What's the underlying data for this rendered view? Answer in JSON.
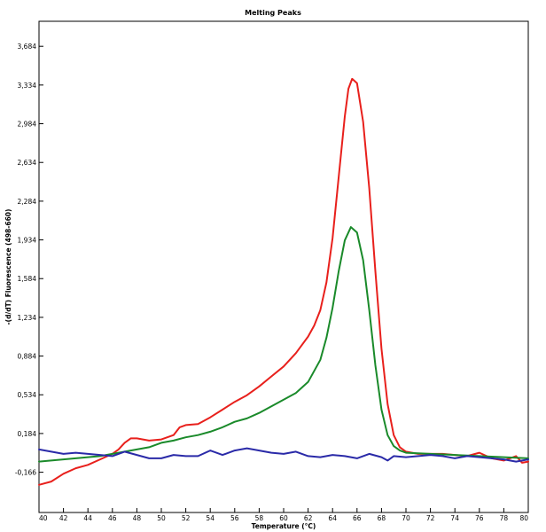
{
  "chart_data": {
    "type": "line",
    "title": "Melting Peaks",
    "xlabel": "Temperature (°C)",
    "ylabel": "-(d/dT) Fluorescence (498-660)",
    "xlim": [
      40,
      80
    ],
    "ylim": [
      -0.53,
      3.91
    ],
    "x_ticks": [
      40,
      42,
      44,
      46,
      48,
      50,
      52,
      54,
      56,
      58,
      60,
      62,
      64,
      66,
      68,
      70,
      72,
      74,
      76,
      78,
      80
    ],
    "x_tick_labels": [
      "40",
      "42",
      "44",
      "46",
      "48",
      "50",
      "52",
      "54",
      "56",
      "58",
      "60",
      "62",
      "64",
      "66",
      "68",
      "70",
      "72",
      "74",
      "76",
      "78",
      "80"
    ],
    "y_ticks": [
      -0.166,
      0.184,
      0.534,
      0.884,
      1.234,
      1.584,
      1.934,
      2.284,
      2.634,
      2.984,
      3.334,
      3.684
    ],
    "y_tick_labels": [
      "-0,166",
      "0,184",
      "0,534",
      "0,884",
      "1,234",
      "1,584",
      "1,934",
      "2,284",
      "2,634",
      "2,984",
      "3,334",
      "3,684"
    ],
    "grid": false,
    "legend": "none",
    "series": [
      {
        "color": "#e8201c",
        "points": [
          [
            40,
            -0.28
          ],
          [
            41,
            -0.25
          ],
          [
            42,
            -0.18
          ],
          [
            43,
            -0.13
          ],
          [
            44,
            -0.1
          ],
          [
            45,
            -0.05
          ],
          [
            46,
            0.0
          ],
          [
            46.5,
            0.04
          ],
          [
            47,
            0.1
          ],
          [
            47.5,
            0.14
          ],
          [
            48,
            0.14
          ],
          [
            48.5,
            0.13
          ],
          [
            49,
            0.12
          ],
          [
            50,
            0.13
          ],
          [
            51,
            0.17
          ],
          [
            51.5,
            0.24
          ],
          [
            52,
            0.26
          ],
          [
            53,
            0.27
          ],
          [
            54,
            0.33
          ],
          [
            55,
            0.4
          ],
          [
            56,
            0.47
          ],
          [
            57,
            0.53
          ],
          [
            58,
            0.61
          ],
          [
            59,
            0.7
          ],
          [
            60,
            0.79
          ],
          [
            61,
            0.91
          ],
          [
            62,
            1.06
          ],
          [
            62.5,
            1.16
          ],
          [
            63,
            1.3
          ],
          [
            63.5,
            1.55
          ],
          [
            64,
            1.95
          ],
          [
            64.5,
            2.5
          ],
          [
            65,
            3.05
          ],
          [
            65.3,
            3.3
          ],
          [
            65.6,
            3.39
          ],
          [
            66,
            3.35
          ],
          [
            66.5,
            3.0
          ],
          [
            67,
            2.4
          ],
          [
            67.5,
            1.65
          ],
          [
            68,
            0.95
          ],
          [
            68.5,
            0.45
          ],
          [
            69,
            0.17
          ],
          [
            69.5,
            0.06
          ],
          [
            70,
            0.02
          ],
          [
            71,
            0.0
          ],
          [
            72,
            0.0
          ],
          [
            73,
            0.0
          ],
          [
            74,
            -0.01
          ],
          [
            75,
            -0.02
          ],
          [
            76,
            0.01
          ],
          [
            77,
            -0.04
          ],
          [
            78,
            -0.06
          ],
          [
            79,
            -0.02
          ],
          [
            79.5,
            -0.08
          ],
          [
            80,
            -0.07
          ]
        ]
      },
      {
        "color": "#1a8a2a",
        "points": [
          [
            40,
            -0.07
          ],
          [
            41,
            -0.06
          ],
          [
            42,
            -0.05
          ],
          [
            43,
            -0.04
          ],
          [
            44,
            -0.03
          ],
          [
            45,
            -0.02
          ],
          [
            46,
            0.0
          ],
          [
            47,
            0.02
          ],
          [
            48,
            0.04
          ],
          [
            49,
            0.06
          ],
          [
            50,
            0.1
          ],
          [
            51,
            0.12
          ],
          [
            52,
            0.15
          ],
          [
            53,
            0.17
          ],
          [
            54,
            0.2
          ],
          [
            55,
            0.24
          ],
          [
            56,
            0.29
          ],
          [
            57,
            0.32
          ],
          [
            58,
            0.37
          ],
          [
            59,
            0.43
          ],
          [
            60,
            0.49
          ],
          [
            61,
            0.55
          ],
          [
            62,
            0.65
          ],
          [
            63,
            0.85
          ],
          [
            63.5,
            1.05
          ],
          [
            64,
            1.32
          ],
          [
            64.5,
            1.65
          ],
          [
            65,
            1.93
          ],
          [
            65.5,
            2.05
          ],
          [
            66,
            2.0
          ],
          [
            66.5,
            1.75
          ],
          [
            67,
            1.3
          ],
          [
            67.5,
            0.8
          ],
          [
            68,
            0.4
          ],
          [
            68.5,
            0.17
          ],
          [
            69,
            0.07
          ],
          [
            69.5,
            0.03
          ],
          [
            70,
            0.01
          ],
          [
            72,
            0.0
          ],
          [
            74,
            -0.01
          ],
          [
            76,
            -0.02
          ],
          [
            78,
            -0.03
          ],
          [
            80,
            -0.04
          ]
        ]
      },
      {
        "color": "#2a2aa8",
        "points": [
          [
            40,
            0.04
          ],
          [
            41,
            0.02
          ],
          [
            42,
            0.0
          ],
          [
            43,
            0.01
          ],
          [
            44,
            0.0
          ],
          [
            45,
            -0.01
          ],
          [
            46,
            -0.02
          ],
          [
            47,
            0.02
          ],
          [
            48,
            -0.01
          ],
          [
            49,
            -0.04
          ],
          [
            50,
            -0.04
          ],
          [
            51,
            -0.01
          ],
          [
            52,
            -0.02
          ],
          [
            53,
            -0.02
          ],
          [
            54,
            0.03
          ],
          [
            55,
            -0.01
          ],
          [
            56,
            0.03
          ],
          [
            57,
            0.05
          ],
          [
            58,
            0.03
          ],
          [
            59,
            0.01
          ],
          [
            60,
            0.0
          ],
          [
            61,
            0.02
          ],
          [
            62,
            -0.02
          ],
          [
            63,
            -0.03
          ],
          [
            64,
            -0.01
          ],
          [
            65,
            -0.02
          ],
          [
            66,
            -0.04
          ],
          [
            67,
            0.0
          ],
          [
            68,
            -0.03
          ],
          [
            68.5,
            -0.06
          ],
          [
            69,
            -0.02
          ],
          [
            70,
            -0.03
          ],
          [
            71,
            -0.02
          ],
          [
            72,
            -0.01
          ],
          [
            73,
            -0.02
          ],
          [
            74,
            -0.04
          ],
          [
            75,
            -0.02
          ],
          [
            76,
            -0.03
          ],
          [
            77,
            -0.04
          ],
          [
            78,
            -0.05
          ],
          [
            79,
            -0.07
          ],
          [
            80,
            -0.05
          ]
        ]
      }
    ]
  }
}
